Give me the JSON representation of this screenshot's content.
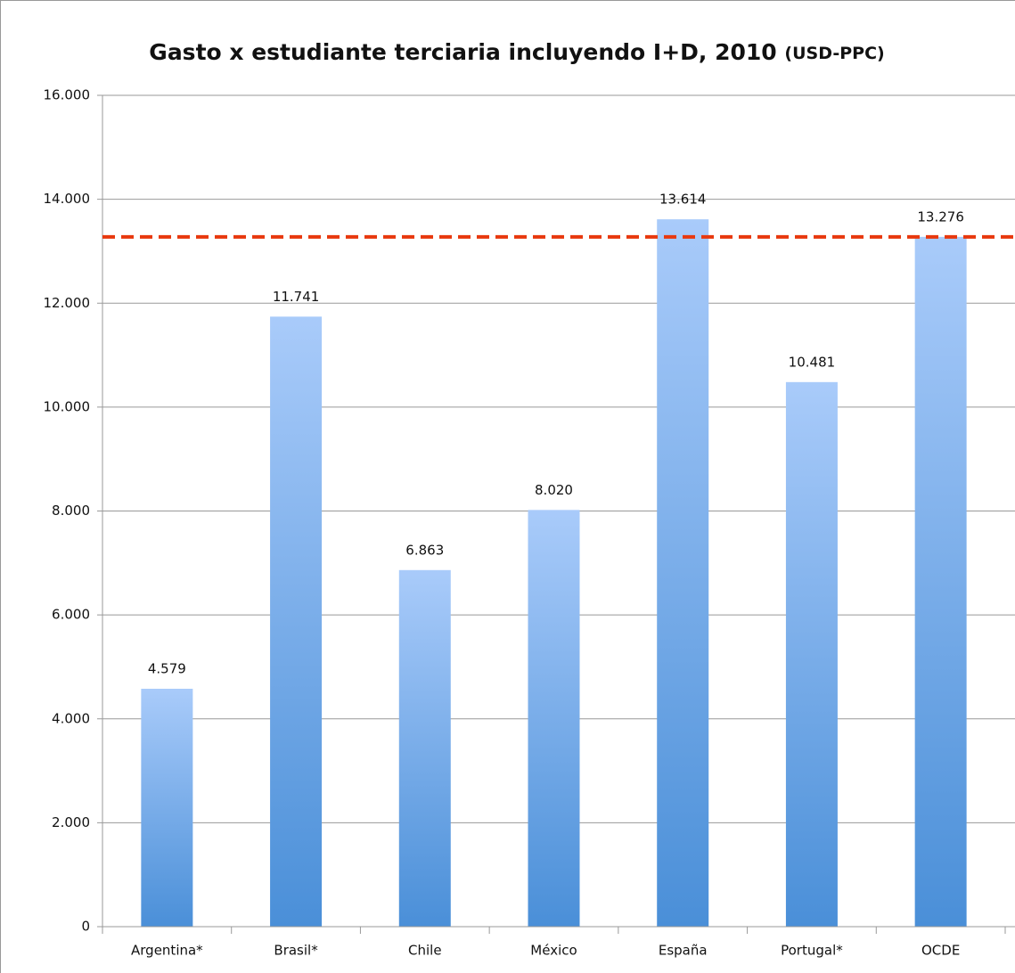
{
  "chart_data": {
    "type": "bar",
    "title": "Gasto x estudiante terciaria incluyendo I+D, 2010",
    "title_unit": "(USD-PPC)",
    "categories": [
      "Argentina*",
      "Brasil*",
      "Chile",
      "México",
      "España",
      "Portugal*",
      "OCDE"
    ],
    "values": [
      4579,
      11741,
      6863,
      8020,
      13614,
      10481,
      13276
    ],
    "value_labels": [
      "4.579",
      "11.741",
      "6.863",
      "8.020",
      "13.614",
      "10.481",
      "13.276"
    ],
    "colors": [
      "#a9cbfa",
      "#4a8fd8"
    ],
    "ylim": [
      0,
      16000
    ],
    "yticks": [
      0,
      {
        "value": 2000,
        "label": "2.000"
      },
      {
        "value": 4000,
        "label": "4.000"
      },
      {
        "value": 6000,
        "label": "6.000"
      },
      {
        "value": 8000,
        "label": "8.000"
      },
      {
        "value": 10000,
        "label": "10.000"
      },
      {
        "value": 12000,
        "label": "12.000"
      },
      {
        "value": 14000,
        "label": "14.000"
      },
      {
        "value": 16000,
        "label": "16.000"
      }
    ],
    "grid": true,
    "reference_line": {
      "value": 13276,
      "color": "#e8380d"
    }
  }
}
